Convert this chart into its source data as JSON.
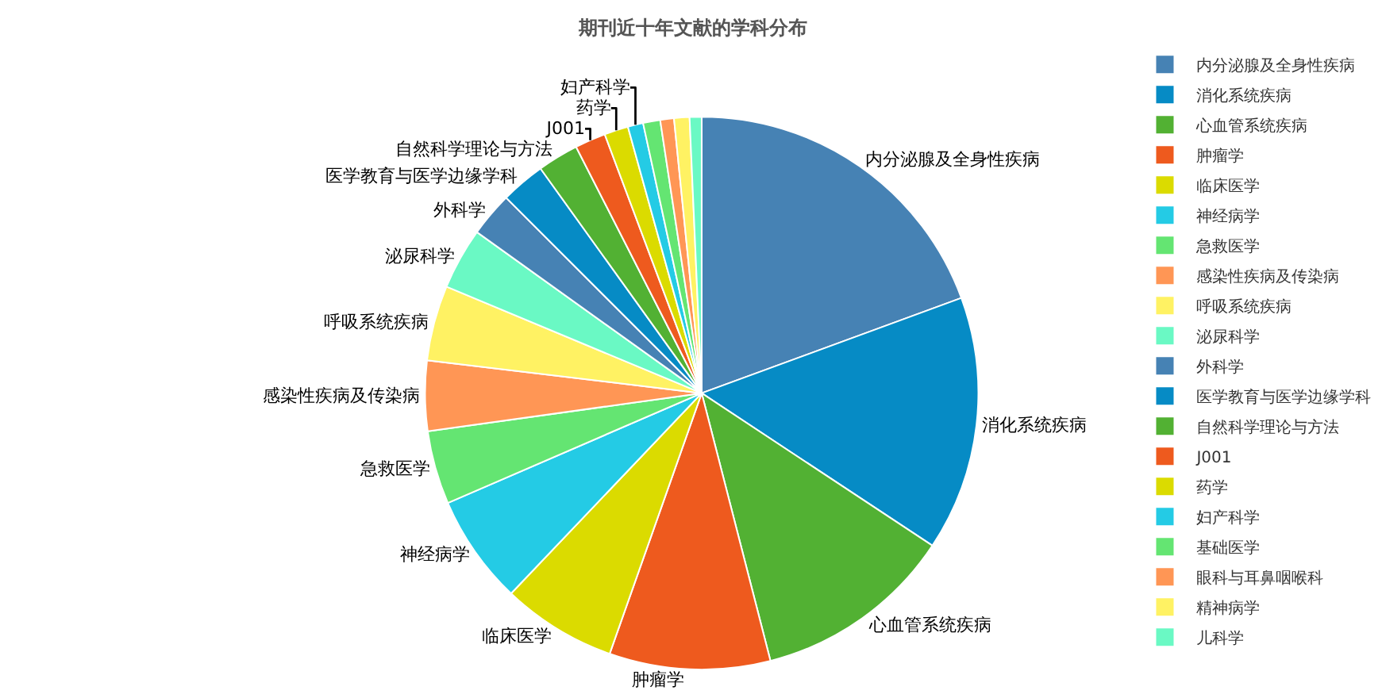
{
  "chart_data": {
    "type": "pie",
    "title": "期刊近十年文献的学科分布",
    "categories": [
      "内分泌腺及全身性疾病",
      "消化系统疾病",
      "心血管系统疾病",
      "肿瘤学",
      "临床医学",
      "神经病学",
      "急救医学",
      "感染性疾病及传染病",
      "呼吸系统疾病",
      "泌尿科学",
      "外科学",
      "医学教育与医学边缘学科",
      "自然科学理论与方法",
      "J001",
      "药学",
      "妇产科学",
      "基础医学",
      "眼科与耳鼻咽喉科",
      "精神病学",
      "儿科学"
    ],
    "values": [
      19.4,
      14.9,
      11.7,
      9.4,
      6.7,
      6.4,
      4.3,
      4.1,
      4.4,
      3.6,
      2.6,
      2.6,
      2.4,
      1.8,
      1.4,
      0.9,
      1.0,
      0.8,
      0.9,
      0.7
    ],
    "colors": [
      "#4682b4",
      "#068bc5",
      "#52b133",
      "#ee5a1e",
      "#dbdb00",
      "#24cbe5",
      "#64e572",
      "#ff9655",
      "#fff263",
      "#6af9c4",
      "#4682b4",
      "#068bc5",
      "#52b133",
      "#ee5a1e",
      "#dbdb00",
      "#24cbe5",
      "#64e572",
      "#ff9655",
      "#fff263",
      "#6af9c4"
    ],
    "value_labels": [
      "内分泌腺及全身性疾病",
      "消化系统疾病",
      "心血管系统疾病",
      "肿瘤学",
      "临床医学",
      "神经病学",
      "急救医学",
      "感染性疾病及传染病",
      "呼吸系统疾病",
      "泌尿科学",
      "外科学",
      "医学教育与医学边缘学科",
      "自然科学理论与方法",
      "J001",
      "药学",
      "妇产科学",
      null,
      null,
      null,
      null
    ],
    "legend": "right"
  }
}
